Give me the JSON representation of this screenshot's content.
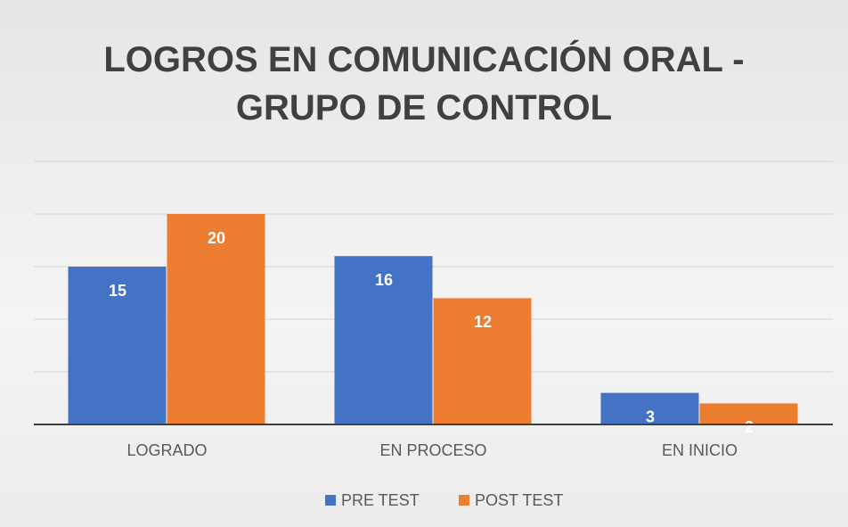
{
  "chart_data": {
    "type": "bar",
    "title": "LOGROS EN COMUNICACIÓN ORAL - GRUPO DE CONTROL",
    "categories": [
      "LOGRADO",
      "EN PROCESO",
      "EN INICIO"
    ],
    "series": [
      {
        "name": "PRE TEST",
        "color": "#4472c4",
        "values": [
          15,
          16,
          3
        ]
      },
      {
        "name": "POST TEST",
        "color": "#ed7d31",
        "values": [
          20,
          12,
          2
        ]
      }
    ],
    "ylim": [
      0,
      25
    ],
    "yticks": [
      0,
      5,
      10,
      15,
      20,
      25
    ],
    "grid": true,
    "legend": "bottom"
  }
}
